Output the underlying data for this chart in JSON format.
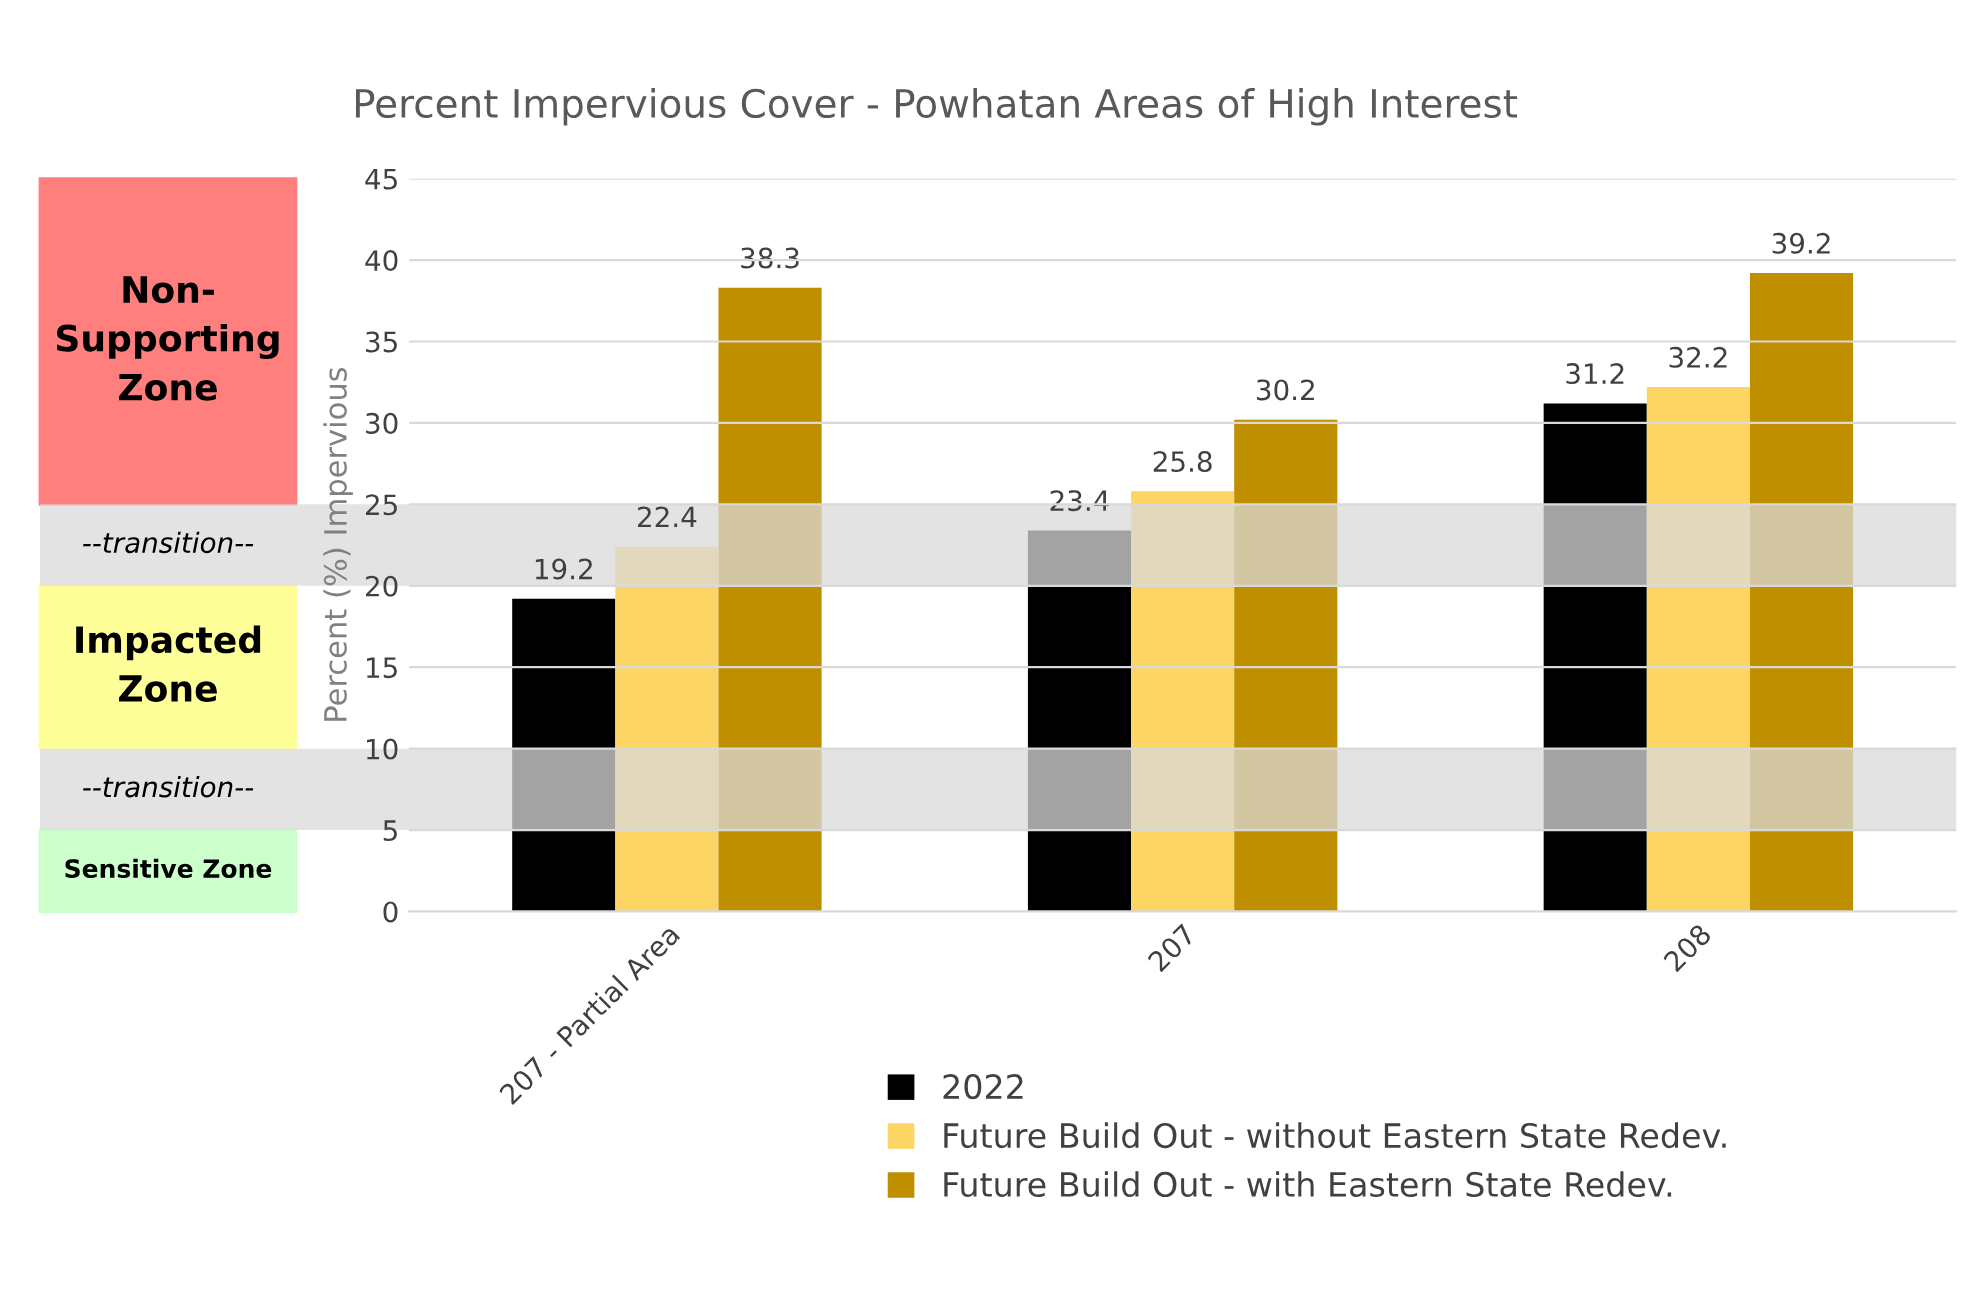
{
  "chart_data": {
    "type": "bar",
    "title": "Percent Impervious Cover - Powhatan Areas of High Interest",
    "ylabel": "Percent (%) Impervious",
    "categories": [
      "207 - Partial Area",
      "207",
      "208"
    ],
    "series": [
      {
        "name": "2022",
        "color": "#000000",
        "values": [
          19.2,
          23.4,
          31.2
        ]
      },
      {
        "name": "Future Build Out - without Eastern State Redev.",
        "color": "#fcd565",
        "values": [
          22.4,
          25.8,
          32.2
        ]
      },
      {
        "name": "Future Build Out - with Eastern State Redev.",
        "color": "#bf8f00",
        "values": [
          38.3,
          30.2,
          39.2
        ]
      }
    ],
    "ylim": [
      0,
      45
    ],
    "yticks": [
      0,
      5,
      10,
      15,
      20,
      25,
      30,
      35,
      40,
      45
    ],
    "grid": "y",
    "legend": "bottom",
    "data_labels": true,
    "bands": [
      {
        "axis": "y",
        "from": 20,
        "to": 25,
        "label": "--transition--",
        "color": "#d9d9d9"
      },
      {
        "axis": "y",
        "from": 5,
        "to": 10,
        "label": "--transition--",
        "color": "#d9d9d9"
      }
    ],
    "annotations": [
      "Non-\nSupporting\nZone",
      "Impacted\nZone",
      "Sensitive Zone"
    ]
  }
}
